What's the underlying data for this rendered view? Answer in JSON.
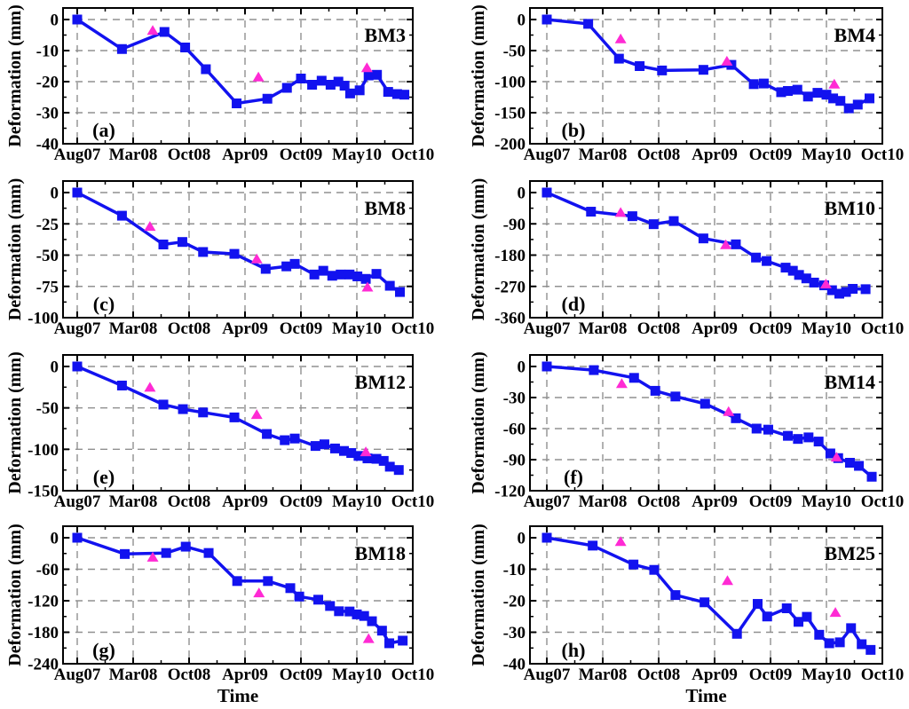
{
  "ylabel": "Deformation (mm)",
  "xlabel": "Time",
  "x_tick_labels": [
    "Aug07",
    "Mar08",
    "Oct08",
    "Apr09",
    "Oct09",
    "May10",
    "Oct10"
  ],
  "colors": {
    "line": "#1212ef",
    "square_marker": "#1212ef",
    "triangle_marker": "#ff2ad4",
    "grid": "#909090",
    "axis": "#000000",
    "text": "#000000",
    "background": "#ffffff"
  },
  "chart_data": [
    {
      "type": "line",
      "panel": "(a)",
      "station": "BM3",
      "ylim": [
        0,
        -40
      ],
      "yticks": [
        0,
        -10,
        -20,
        -30,
        -40
      ],
      "xlim": [
        0,
        6
      ],
      "x_unit": "fractional position between labeled date ticks (Aug07=0 ... Oct10=6)",
      "points": [
        [
          0,
          0
        ],
        [
          0.8,
          -9.5
        ],
        [
          1.56,
          -4
        ],
        [
          1.93,
          -9
        ],
        [
          2.3,
          -16
        ],
        [
          2.85,
          -27
        ],
        [
          3.4,
          -25.5
        ],
        [
          3.75,
          -22
        ],
        [
          4.0,
          -19
        ],
        [
          4.2,
          -21
        ],
        [
          4.37,
          -19.7
        ],
        [
          4.53,
          -21
        ],
        [
          4.67,
          -20
        ],
        [
          4.78,
          -21.3
        ],
        [
          4.88,
          -23.8
        ],
        [
          5.05,
          -22.8
        ],
        [
          5.21,
          -18
        ],
        [
          5.36,
          -17.8
        ],
        [
          5.56,
          -23.3
        ],
        [
          5.72,
          -24
        ],
        [
          5.85,
          -24.2
        ]
      ],
      "triangles": [
        [
          1.35,
          -3.5
        ],
        [
          3.24,
          -18.5
        ],
        [
          5.18,
          -15.5
        ]
      ]
    },
    {
      "type": "line",
      "panel": "(b)",
      "station": "BM4",
      "ylim": [
        0,
        -200
      ],
      "yticks": [
        0,
        -50,
        -100,
        -150,
        -200
      ],
      "xlim": [
        0,
        6
      ],
      "x_unit": "fractional position between labeled date ticks (Aug07=0 ... Oct10=6)",
      "points": [
        [
          0,
          0
        ],
        [
          0.74,
          -7
        ],
        [
          1.29,
          -63
        ],
        [
          1.66,
          -75
        ],
        [
          2.06,
          -82
        ],
        [
          2.8,
          -81
        ],
        [
          3.3,
          -73
        ],
        [
          3.7,
          -104
        ],
        [
          3.88,
          -103
        ],
        [
          4.19,
          -117
        ],
        [
          4.31,
          -115
        ],
        [
          4.48,
          -113
        ],
        [
          4.67,
          -124
        ],
        [
          4.84,
          -118
        ],
        [
          5.0,
          -121
        ],
        [
          5.12,
          -127
        ],
        [
          5.25,
          -131
        ],
        [
          5.4,
          -143
        ],
        [
          5.56,
          -137
        ],
        [
          5.77,
          -127
        ]
      ],
      "triangles": [
        [
          1.32,
          -31
        ],
        [
          3.22,
          -67
        ],
        [
          5.14,
          -104
        ]
      ]
    },
    {
      "type": "line",
      "panel": "(c)",
      "station": "BM8",
      "ylim": [
        0,
        -100
      ],
      "yticks": [
        0,
        -25,
        -50,
        -75,
        -100
      ],
      "xlim": [
        0,
        6
      ],
      "x_unit": "fractional position between labeled date ticks (Aug07=0 ... Oct10=6)",
      "points": [
        [
          0,
          0
        ],
        [
          0.8,
          -18.5
        ],
        [
          1.54,
          -41.5
        ],
        [
          1.88,
          -39.5
        ],
        [
          2.25,
          -47.5
        ],
        [
          2.81,
          -49
        ],
        [
          3.37,
          -61
        ],
        [
          3.74,
          -59
        ],
        [
          3.89,
          -57
        ],
        [
          4.24,
          -65.5
        ],
        [
          4.4,
          -62.5
        ],
        [
          4.56,
          -66.5
        ],
        [
          4.71,
          -65.5
        ],
        [
          4.87,
          -65.5
        ],
        [
          5.01,
          -67
        ],
        [
          5.16,
          -69
        ],
        [
          5.35,
          -65
        ],
        [
          5.59,
          -74.5
        ],
        [
          5.77,
          -79.5
        ]
      ],
      "triangles": [
        [
          1.3,
          -27
        ],
        [
          3.21,
          -53
        ],
        [
          5.19,
          -75.5
        ]
      ]
    },
    {
      "type": "line",
      "panel": "(d)",
      "station": "BM10",
      "ylim": [
        0,
        -360
      ],
      "yticks": [
        0,
        -90,
        -180,
        -270,
        -360
      ],
      "xlim": [
        0,
        6
      ],
      "x_unit": "fractional position between labeled date ticks (Aug07=0 ... Oct10=6)",
      "points": [
        [
          0,
          0
        ],
        [
          0.79,
          -55
        ],
        [
          1.53,
          -68
        ],
        [
          1.91,
          -91
        ],
        [
          2.27,
          -82
        ],
        [
          2.8,
          -132
        ],
        [
          3.38,
          -149
        ],
        [
          3.74,
          -187
        ],
        [
          3.93,
          -197
        ],
        [
          4.27,
          -216
        ],
        [
          4.4,
          -225
        ],
        [
          4.51,
          -237
        ],
        [
          4.64,
          -247
        ],
        [
          4.78,
          -259
        ],
        [
          4.96,
          -267
        ],
        [
          5.1,
          -281
        ],
        [
          5.23,
          -291
        ],
        [
          5.35,
          -286
        ],
        [
          5.47,
          -277
        ],
        [
          5.7,
          -278
        ]
      ],
      "triangles": [
        [
          1.32,
          -57
        ],
        [
          3.2,
          -150
        ],
        [
          4.99,
          -263
        ]
      ]
    },
    {
      "type": "line",
      "panel": "(e)",
      "station": "BM12",
      "ylim": [
        0,
        -150
      ],
      "yticks": [
        0,
        -50,
        -100,
        -150
      ],
      "xlim": [
        0,
        6
      ],
      "x_unit": "fractional position between labeled date ticks (Aug07=0 ... Oct10=6)",
      "points": [
        [
          0,
          0
        ],
        [
          0.8,
          -23
        ],
        [
          1.54,
          -46
        ],
        [
          1.89,
          -51.5
        ],
        [
          2.25,
          -55.5
        ],
        [
          2.81,
          -61.5
        ],
        [
          3.39,
          -81.5
        ],
        [
          3.71,
          -89
        ],
        [
          3.89,
          -87
        ],
        [
          4.26,
          -96
        ],
        [
          4.42,
          -94
        ],
        [
          4.61,
          -99
        ],
        [
          4.77,
          -102
        ],
        [
          4.9,
          -104.5
        ],
        [
          5.03,
          -108
        ],
        [
          5.19,
          -111
        ],
        [
          5.35,
          -111.5
        ],
        [
          5.48,
          -114
        ],
        [
          5.59,
          -121
        ],
        [
          5.75,
          -125
        ]
      ],
      "triangles": [
        [
          1.3,
          -25
        ],
        [
          3.21,
          -58
        ],
        [
          5.16,
          -103
        ]
      ]
    },
    {
      "type": "line",
      "panel": "(f)",
      "station": "BM14",
      "ylim": [
        0,
        -120
      ],
      "yticks": [
        0,
        -30,
        -60,
        -90,
        -120
      ],
      "xlim": [
        0,
        6
      ],
      "x_unit": "fractional position between labeled date ticks (Aug07=0 ... Oct10=6)",
      "points": [
        [
          0,
          0
        ],
        [
          0.84,
          -3.5
        ],
        [
          1.56,
          -11
        ],
        [
          1.94,
          -23.5
        ],
        [
          2.3,
          -29
        ],
        [
          2.83,
          -36
        ],
        [
          3.38,
          -50
        ],
        [
          3.75,
          -60
        ],
        [
          3.96,
          -61
        ],
        [
          4.31,
          -67
        ],
        [
          4.49,
          -70
        ],
        [
          4.68,
          -68.5
        ],
        [
          4.86,
          -72.5
        ],
        [
          5.07,
          -84
        ],
        [
          5.21,
          -88.5
        ],
        [
          5.42,
          -93
        ],
        [
          5.58,
          -96
        ],
        [
          5.81,
          -106.5
        ]
      ],
      "triangles": [
        [
          1.34,
          -16.5
        ],
        [
          3.25,
          -43.5
        ],
        [
          5.18,
          -87.5
        ]
      ]
    },
    {
      "type": "line",
      "panel": "(g)",
      "station": "BM18",
      "ylim": [
        0,
        -240
      ],
      "yticks": [
        0,
        -60,
        -120,
        -180,
        -240
      ],
      "xlim": [
        0,
        6
      ],
      "x_unit": "fractional position between labeled date ticks (Aug07=0 ... Oct10=6)",
      "points": [
        [
          0,
          0
        ],
        [
          0.85,
          -31
        ],
        [
          1.59,
          -29
        ],
        [
          1.94,
          -17
        ],
        [
          2.35,
          -29
        ],
        [
          2.86,
          -82.5
        ],
        [
          3.41,
          -82.5
        ],
        [
          3.81,
          -96
        ],
        [
          3.97,
          -112
        ],
        [
          4.31,
          -118
        ],
        [
          4.52,
          -130
        ],
        [
          4.68,
          -140
        ],
        [
          4.87,
          -140.5
        ],
        [
          5.0,
          -146
        ],
        [
          5.13,
          -149
        ],
        [
          5.27,
          -159
        ],
        [
          5.45,
          -177
        ],
        [
          5.58,
          -201
        ],
        [
          5.82,
          -196
        ]
      ],
      "triangles": [
        [
          1.35,
          -37
        ],
        [
          3.25,
          -105
        ],
        [
          5.21,
          -192
        ]
      ]
    },
    {
      "type": "line",
      "panel": "(h)",
      "station": "BM25",
      "ylim": [
        0,
        -40
      ],
      "yticks": [
        0,
        -10,
        -20,
        -30,
        -40
      ],
      "xlim": [
        0,
        6
      ],
      "x_unit": "fractional position between labeled date ticks (Aug07=0 ... Oct10=6)",
      "points": [
        [
          0,
          0
        ],
        [
          0.82,
          -2.5
        ],
        [
          1.55,
          -8.5
        ],
        [
          1.92,
          -10.2
        ],
        [
          2.3,
          -18.2
        ],
        [
          2.82,
          -20.5
        ],
        [
          3.4,
          -30.5
        ],
        [
          3.77,
          -21
        ],
        [
          3.94,
          -25
        ],
        [
          4.29,
          -22.4
        ],
        [
          4.5,
          -26.7
        ],
        [
          4.65,
          -25.1
        ],
        [
          4.87,
          -30.8
        ],
        [
          5.05,
          -33.5
        ],
        [
          5.24,
          -33.2
        ],
        [
          5.44,
          -28.7
        ],
        [
          5.63,
          -33.8
        ],
        [
          5.79,
          -35.6
        ]
      ],
      "triangles": [
        [
          1.32,
          -1.2
        ],
        [
          3.23,
          -13.6
        ],
        [
          5.16,
          -23.7
        ]
      ]
    }
  ]
}
